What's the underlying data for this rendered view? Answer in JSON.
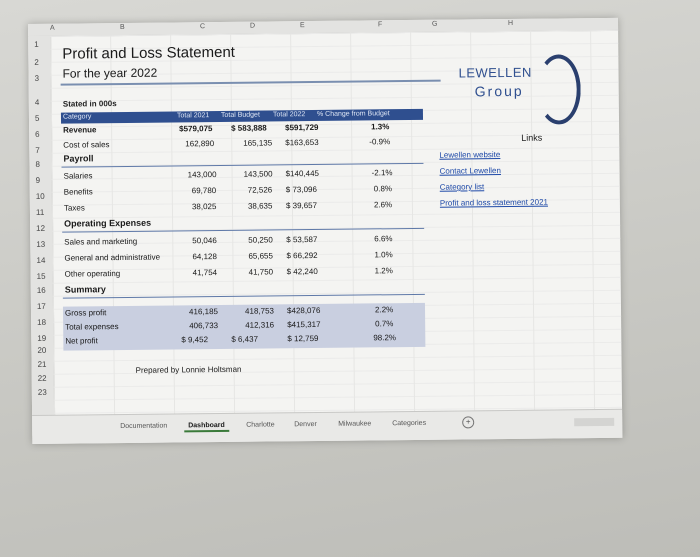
{
  "columns": [
    "A",
    "B",
    "C",
    "D",
    "E",
    "F",
    "G",
    "H"
  ],
  "rows": [
    "1",
    "2",
    "3",
    "4",
    "5",
    "6",
    "7",
    "8",
    "9",
    "10",
    "11",
    "12",
    "13",
    "14",
    "15",
    "16",
    "17",
    "18",
    "19",
    "20",
    "21",
    "22",
    "23"
  ],
  "sheet": {
    "title": "Profit and Loss Statement",
    "subtitle": "For the year 2022",
    "stated": "Stated in 000s",
    "headers": {
      "category": "Category",
      "total2021": "Total 2021",
      "total_budget": "Total Budget",
      "total2022": "Total 2022",
      "change": "% Change from Budget"
    },
    "revenue": {
      "label": "Revenue",
      "t2021": "$579,075",
      "budget": "$  583,888",
      "t2022": "$591,729",
      "change": "1.3%"
    },
    "cost_of_sales": {
      "label": "Cost of sales",
      "t2021": "162,890",
      "budget": "165,135",
      "t2022": "$163,653",
      "change": "-0.9%"
    },
    "payroll_heading": "Payroll",
    "salaries": {
      "label": "Salaries",
      "t2021": "143,000",
      "budget": "143,500",
      "t2022": "$140,445",
      "change": "-2.1%"
    },
    "benefits": {
      "label": "Benefits",
      "t2021": "69,780",
      "budget": "72,526",
      "t2022": "$  73,096",
      "change": "0.8%"
    },
    "taxes": {
      "label": "Taxes",
      "t2021": "38,025",
      "budget": "38,635",
      "t2022": "$  39,657",
      "change": "2.6%"
    },
    "operating_heading": "Operating Expenses",
    "sales_marketing": {
      "label": "Sales and marketing",
      "t2021": "50,046",
      "budget": "50,250",
      "t2022": "$  53,587",
      "change": "6.6%"
    },
    "general_admin": {
      "label": "General and administrative",
      "t2021": "64,128",
      "budget": "65,655",
      "t2022": "$  66,292",
      "change": "1.0%"
    },
    "other_operating": {
      "label": "Other operating",
      "t2021": "41,754",
      "budget": "41,750",
      "t2022": "$  42,240",
      "change": "1.2%"
    },
    "summary_heading": "Summary",
    "gross_profit": {
      "label": "Gross profit",
      "t2021": "416,185",
      "budget": "418,753",
      "t2022": "$428,076",
      "change": "2.2%"
    },
    "total_expenses": {
      "label": "Total expenses",
      "t2021": "406,733",
      "budget": "412,316",
      "t2022": "$415,317",
      "change": "0.7%"
    },
    "net_profit": {
      "label": "Net profit",
      "t2021": "$  9,452",
      "budget": "$     6,437",
      "t2022": "$  12,759",
      "change": "98.2%"
    },
    "prepared_by": "Prepared by  Lonnie Holtsman"
  },
  "logo": {
    "line1": "LEWELLEN",
    "line2": "Group"
  },
  "links": {
    "title": "Links",
    "items": [
      "Lewellen website",
      "Contact Lewellen",
      "Category list",
      "Profit and loss statement 2021"
    ]
  },
  "tabs": [
    "Documentation",
    "Dashboard",
    "Charlotte",
    "Denver",
    "Milwaukee",
    "Categories"
  ],
  "active_tab": "Dashboard",
  "colors": {
    "header_band": "#2f4f8f",
    "summary_band": "#c9cfe0",
    "link": "#1f4aa8"
  }
}
